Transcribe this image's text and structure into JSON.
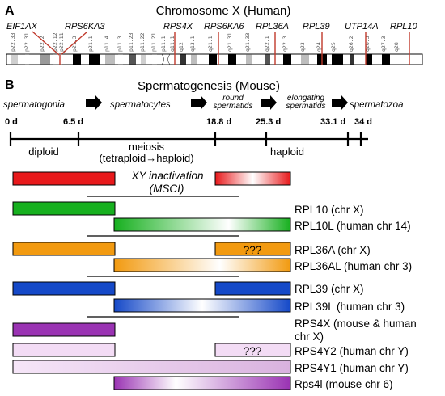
{
  "panel_a": {
    "letter": "A",
    "title": "Chromosome X (Human)",
    "genes": [
      "EIF1AX",
      "RPS6KA3",
      "RPS4X",
      "RPS6KA6",
      "RPL36A",
      "RPL39",
      "UTP14A",
      "RPL10"
    ],
    "bands": [
      "p22.33",
      "p22.31",
      "p22.2",
      "p22.12",
      "p22.11",
      "p21.3",
      "p21.1",
      "p11.4",
      "p11.3",
      "p11.23",
      "p11.22",
      "p11.21",
      "p11.1",
      "q11.1",
      "q12",
      "q13.1",
      "q21.1",
      "q21.31",
      "q21.33",
      "q22.1",
      "q22.3",
      "q23",
      "q24",
      "q25",
      "q26.2",
      "q26.3",
      "q27.3",
      "q28"
    ]
  },
  "panel_b": {
    "letter": "B",
    "title": "Spermatogenesis (Mouse)",
    "stages": [
      "spermatogonia",
      "spermatocytes",
      "round spermatids",
      "elongating spermatids",
      "spermatozoa"
    ],
    "days": [
      "0 d",
      "6.5 d",
      "18.8 d",
      "25.3 d",
      "33.1 d",
      "34 d"
    ],
    "ploidy": [
      "diploid",
      "meiosis",
      "(tetraploid→haploid)",
      "haploid"
    ],
    "msci": [
      "XY inactivation",
      "(MSCI)"
    ],
    "unknown": "???",
    "labels": [
      "RPL10 (chr X)",
      "RPL10L (human chr 14)",
      "RPL36A (chr X)",
      "RPL36AL (human chr 3)",
      "RPL39 (chr X)",
      "RPL39L (human chr 3)",
      "RPS4X (mouse & human",
      "chr X)",
      "RPS4Y2 (human chr Y)",
      "RPS4Y1 (human chr Y)",
      "Rps4l (mouse chr 6)"
    ]
  }
}
